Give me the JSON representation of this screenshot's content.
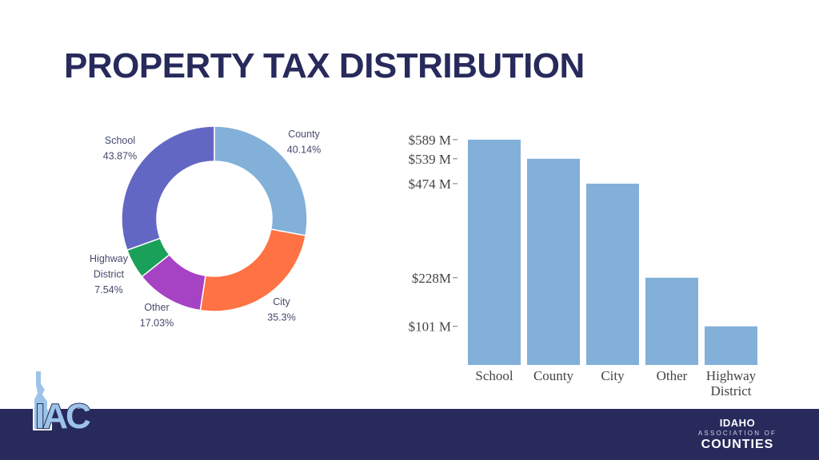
{
  "slide": {
    "title": "PROPERTY TAX DISTRIBUTION"
  },
  "chart_data": [
    {
      "type": "pie",
      "variant": "donut",
      "slices": [
        {
          "name": "County",
          "pct_label": "40.14%",
          "value": 40.14,
          "color": "#82b0d9"
        },
        {
          "name": "City",
          "pct_label": "35.3%",
          "value": 35.3,
          "color": "#ff7243"
        },
        {
          "name": "Other",
          "pct_label": "17.03%",
          "value": 17.03,
          "color": "#a642c4"
        },
        {
          "name": "Highway District",
          "label_lines": [
            "Highway",
            "District",
            "7.54%"
          ],
          "pct_label": "7.54%",
          "value": 7.54,
          "color": "#1ba05a"
        },
        {
          "name": "School",
          "pct_label": "43.87%",
          "value": 43.87,
          "color": "#6367c4"
        }
      ]
    },
    {
      "type": "bar",
      "categories": [
        "School",
        "County",
        "City",
        "Other",
        "Highway District"
      ],
      "category_lines": [
        [
          "School"
        ],
        [
          "County"
        ],
        [
          "City"
        ],
        [
          "Other"
        ],
        [
          "Highway",
          "District"
        ]
      ],
      "values": [
        589,
        539,
        474,
        228,
        101
      ],
      "value_unit": "M",
      "tick_labels": [
        "$589 M",
        "$539 M",
        "$474 M",
        "$228M",
        "$101 M"
      ],
      "bar_color": "#82b0d9",
      "grid": false
    }
  ],
  "footer": {
    "left_logo_text": "IAC",
    "right_logo": {
      "line1": "IDAHO",
      "line2": "ASSOCIATION OF",
      "line3": "COUNTIES"
    },
    "bar_color": "#272a5b"
  }
}
